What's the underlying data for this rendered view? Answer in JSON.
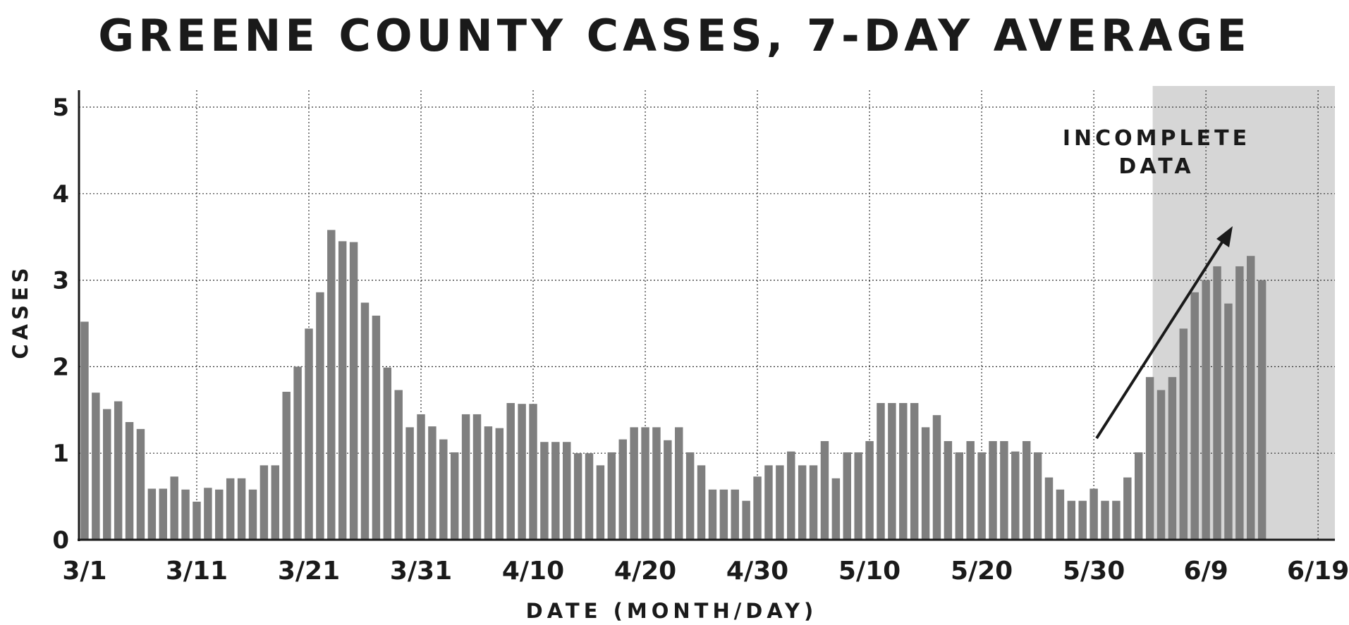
{
  "chart_data": {
    "type": "bar",
    "title": "GREENE COUNTY CASES, 7-DAY AVERAGE",
    "xlabel": "DATE (MONTH/DAY)",
    "ylabel": "CASES",
    "ylim": [
      0,
      5
    ],
    "yticks": [
      "0",
      "1",
      "2",
      "3",
      "4",
      "5"
    ],
    "xticks": [
      "3/1",
      "3/11",
      "3/21",
      "3/31",
      "4/10",
      "4/20",
      "4/30",
      "5/10",
      "5/20",
      "5/30",
      "6/9",
      "6/19"
    ],
    "grid": true,
    "bar_color": "#7f7f7f",
    "shade_color": "#d6d6d6",
    "x_start": "3/1",
    "x_end": "6/19",
    "shaded_region": {
      "from": "6/4",
      "to": "6/19",
      "label": [
        "INCOMPLETE",
        "DATA"
      ]
    },
    "values": [
      2.52,
      1.7,
      1.51,
      1.6,
      1.36,
      1.28,
      0.59,
      0.59,
      0.73,
      0.58,
      0.44,
      0.6,
      0.58,
      0.71,
      0.71,
      0.58,
      0.86,
      0.86,
      1.71,
      2.0,
      2.44,
      2.86,
      3.58,
      3.45,
      3.44,
      2.74,
      2.59,
      1.99,
      1.73,
      1.3,
      1.45,
      1.31,
      1.16,
      1.01,
      1.45,
      1.45,
      1.31,
      1.29,
      1.58,
      1.57,
      1.57,
      1.13,
      1.13,
      1.13,
      1.0,
      1.0,
      0.86,
      1.01,
      1.16,
      1.3,
      1.3,
      1.3,
      1.15,
      1.3,
      1.01,
      0.86,
      0.58,
      0.58,
      0.58,
      0.45,
      0.73,
      0.86,
      0.86,
      1.02,
      0.86,
      0.86,
      1.14,
      0.71,
      1.01,
      1.01,
      1.14,
      1.58,
      1.58,
      1.58,
      1.58,
      1.3,
      1.44,
      1.14,
      1.01,
      1.14,
      1.01,
      1.14,
      1.14,
      1.02,
      1.14,
      1.01,
      0.72,
      0.58,
      0.45,
      0.45,
      0.59,
      0.45,
      0.45,
      0.72,
      1.01,
      1.88,
      1.73,
      1.88,
      2.44,
      2.86,
      3.0,
      3.16,
      2.73,
      3.16,
      3.28,
      3.0
    ]
  }
}
